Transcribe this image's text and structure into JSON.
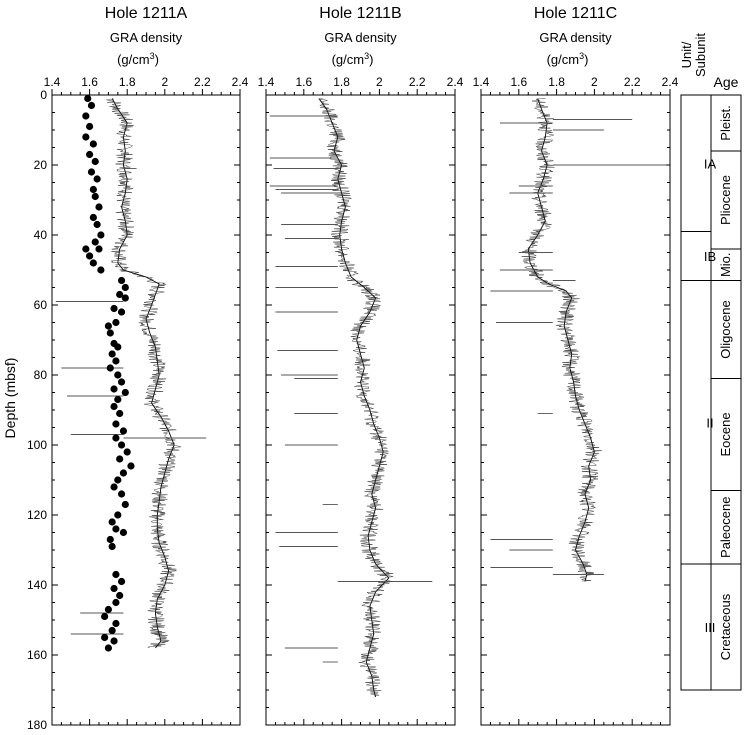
{
  "figure": {
    "ylabel": "Depth (mbsf)",
    "yticks": [
      0,
      20,
      40,
      60,
      80,
      100,
      120,
      140,
      160,
      180
    ],
    "xticks": [
      "1.4",
      "1.6",
      "1.8",
      "2",
      "2.2",
      "2.4"
    ],
    "column_headers": {
      "unit": "Unit/ Subunit",
      "age": "Age"
    }
  },
  "chart_data": [
    {
      "type": "line",
      "title": "Hole 1211A",
      "xlabel_main": "GRA density",
      "xlabel_unit": "(g/cm",
      "xlabel_sup": "3",
      "xlabel_close": ")",
      "xlim": [
        1.4,
        2.4
      ],
      "ylim": [
        0,
        180
      ],
      "y_inverted": true,
      "series": [
        {
          "style": "gra-line",
          "points": [
            [
              1.72,
              1
            ],
            [
              1.75,
              4
            ],
            [
              1.8,
              8
            ],
            [
              1.78,
              12
            ],
            [
              1.79,
              16
            ],
            [
              1.78,
              20
            ],
            [
              1.8,
              24
            ],
            [
              1.79,
              28
            ],
            [
              1.77,
              32
            ],
            [
              1.79,
              36
            ],
            [
              1.8,
              40
            ],
            [
              1.76,
              44
            ],
            [
              1.75,
              48
            ],
            [
              1.78,
              50
            ],
            [
              1.9,
              52
            ],
            [
              1.97,
              54
            ],
            [
              1.95,
              57
            ],
            [
              1.93,
              60
            ],
            [
              1.9,
              64
            ],
            [
              1.92,
              68
            ],
            [
              1.95,
              72
            ],
            [
              1.96,
              76
            ],
            [
              1.97,
              80
            ],
            [
              1.95,
              84
            ],
            [
              1.93,
              88
            ],
            [
              1.98,
              92
            ],
            [
              2.02,
              96
            ],
            [
              2.05,
              100
            ],
            [
              2.02,
              104
            ],
            [
              2.0,
              108
            ],
            [
              1.98,
              112
            ],
            [
              1.97,
              116
            ],
            [
              1.96,
              120
            ],
            [
              1.96,
              124
            ],
            [
              1.97,
              128
            ],
            [
              2.0,
              132
            ],
            [
              2.02,
              136
            ],
            [
              2.0,
              140
            ],
            [
              1.96,
              144
            ],
            [
              1.95,
              148
            ],
            [
              1.96,
              152
            ],
            [
              1.98,
              156
            ],
            [
              1.95,
              158
            ]
          ]
        },
        {
          "style": "gra-spikes",
          "points": [
            [
              1.42,
              59
            ],
            [
              1.45,
              78
            ],
            [
              1.48,
              86
            ],
            [
              1.5,
              97
            ],
            [
              1.55,
              148
            ],
            [
              1.5,
              154
            ],
            [
              1.85,
              21
            ],
            [
              2.22,
              98
            ]
          ]
        },
        {
          "style": "mad-dots",
          "points": [
            [
              1.59,
              1
            ],
            [
              1.61,
              3
            ],
            [
              1.58,
              6
            ],
            [
              1.6,
              9
            ],
            [
              1.58,
              12
            ],
            [
              1.62,
              14
            ],
            [
              1.6,
              17
            ],
            [
              1.63,
              19
            ],
            [
              1.61,
              22
            ],
            [
              1.64,
              24
            ],
            [
              1.62,
              27
            ],
            [
              1.63,
              29
            ],
            [
              1.65,
              32
            ],
            [
              1.62,
              35
            ],
            [
              1.64,
              37
            ],
            [
              1.66,
              40
            ],
            [
              1.63,
              42
            ],
            [
              1.58,
              44
            ],
            [
              1.65,
              44
            ],
            [
              1.6,
              46
            ],
            [
              1.62,
              48
            ],
            [
              1.66,
              50
            ],
            [
              1.77,
              53
            ],
            [
              1.79,
              55
            ],
            [
              1.76,
              57
            ],
            [
              1.79,
              58
            ],
            [
              1.73,
              61
            ],
            [
              1.77,
              62
            ],
            [
              1.74,
              65
            ],
            [
              1.7,
              66
            ],
            [
              1.71,
              68
            ],
            [
              1.73,
              71
            ],
            [
              1.75,
              72
            ],
            [
              1.72,
              74
            ],
            [
              1.74,
              76
            ],
            [
              1.71,
              78
            ],
            [
              1.75,
              80
            ],
            [
              1.77,
              82
            ],
            [
              1.73,
              84
            ],
            [
              1.79,
              85
            ],
            [
              1.75,
              87
            ],
            [
              1.73,
              89
            ],
            [
              1.76,
              91
            ],
            [
              1.74,
              94
            ],
            [
              1.78,
              96
            ],
            [
              1.74,
              98
            ],
            [
              1.77,
              100
            ],
            [
              1.8,
              102
            ],
            [
              1.76,
              104
            ],
            [
              1.82,
              106
            ],
            [
              1.78,
              108
            ],
            [
              1.75,
              110
            ],
            [
              1.73,
              112
            ],
            [
              1.77,
              114
            ],
            [
              1.79,
              117
            ],
            [
              1.75,
              120
            ],
            [
              1.72,
              122
            ],
            [
              1.74,
              124
            ],
            [
              1.78,
              125
            ],
            [
              1.71,
              127
            ],
            [
              1.72,
              129
            ],
            [
              1.74,
              137
            ],
            [
              1.77,
              139
            ],
            [
              1.73,
              141
            ],
            [
              1.76,
              143
            ],
            [
              1.74,
              145
            ],
            [
              1.7,
              147
            ],
            [
              1.68,
              149
            ],
            [
              1.74,
              151
            ],
            [
              1.72,
              153
            ],
            [
              1.68,
              155
            ],
            [
              1.73,
              156
            ],
            [
              1.7,
              158
            ]
          ]
        }
      ]
    },
    {
      "type": "line",
      "title": "Hole 1211B",
      "xlabel_main": "GRA density",
      "xlabel_unit": "(g/cm",
      "xlabel_sup": "3",
      "xlabel_close": ")",
      "xlim": [
        1.4,
        2.4
      ],
      "ylim": [
        0,
        180
      ],
      "y_inverted": true,
      "series": [
        {
          "style": "gra-line",
          "points": [
            [
              1.68,
              1
            ],
            [
              1.72,
              4
            ],
            [
              1.75,
              8
            ],
            [
              1.78,
              12
            ],
            [
              1.76,
              16
            ],
            [
              1.8,
              20
            ],
            [
              1.78,
              24
            ],
            [
              1.8,
              28
            ],
            [
              1.82,
              32
            ],
            [
              1.8,
              36
            ],
            [
              1.79,
              40
            ],
            [
              1.8,
              44
            ],
            [
              1.82,
              48
            ],
            [
              1.85,
              52
            ],
            [
              1.92,
              55
            ],
            [
              1.98,
              58
            ],
            [
              1.95,
              62
            ],
            [
              1.9,
              66
            ],
            [
              1.88,
              70
            ],
            [
              1.9,
              74
            ],
            [
              1.92,
              78
            ],
            [
              1.9,
              82
            ],
            [
              1.92,
              86
            ],
            [
              1.95,
              90
            ],
            [
              1.97,
              94
            ],
            [
              2.0,
              98
            ],
            [
              2.02,
              102
            ],
            [
              2.0,
              106
            ],
            [
              1.98,
              110
            ],
            [
              1.96,
              114
            ],
            [
              1.98,
              118
            ],
            [
              1.96,
              122
            ],
            [
              1.94,
              126
            ],
            [
              1.95,
              130
            ],
            [
              1.98,
              134
            ],
            [
              2.05,
              138
            ],
            [
              1.98,
              142
            ],
            [
              1.95,
              146
            ],
            [
              1.96,
              150
            ],
            [
              1.97,
              154
            ],
            [
              1.95,
              158
            ],
            [
              1.93,
              162
            ],
            [
              1.96,
              166
            ],
            [
              1.97,
              170
            ],
            [
              1.98,
              172
            ]
          ]
        },
        {
          "style": "gra-spikes",
          "points": [
            [
              1.42,
              6
            ],
            [
              1.42,
              18
            ],
            [
              1.44,
              21
            ],
            [
              1.42,
              26
            ],
            [
              1.45,
              27
            ],
            [
              1.48,
              28
            ],
            [
              1.48,
              37
            ],
            [
              1.5,
              41
            ],
            [
              1.45,
              49
            ],
            [
              1.45,
              55
            ],
            [
              1.45,
              62
            ],
            [
              1.46,
              73
            ],
            [
              1.48,
              80
            ],
            [
              1.55,
              81
            ],
            [
              1.55,
              91
            ],
            [
              1.5,
              100
            ],
            [
              1.7,
              117
            ],
            [
              1.45,
              125
            ],
            [
              1.47,
              129
            ],
            [
              2.28,
              139
            ],
            [
              1.5,
              158
            ],
            [
              1.7,
              162
            ]
          ]
        }
      ]
    },
    {
      "type": "line",
      "title": "Hole 1211C",
      "xlabel_main": "GRA density",
      "xlabel_unit": "(g/cm",
      "xlabel_sup": "3",
      "xlabel_close": ")",
      "xlim": [
        1.4,
        2.4
      ],
      "ylim": [
        0,
        180
      ],
      "y_inverted": true,
      "series": [
        {
          "style": "gra-line",
          "points": [
            [
              1.7,
              1
            ],
            [
              1.72,
              4
            ],
            [
              1.75,
              8
            ],
            [
              1.74,
              12
            ],
            [
              1.72,
              16
            ],
            [
              1.75,
              20
            ],
            [
              1.73,
              24
            ],
            [
              1.7,
              28
            ],
            [
              1.72,
              32
            ],
            [
              1.74,
              36
            ],
            [
              1.7,
              40
            ],
            [
              1.65,
              44
            ],
            [
              1.66,
              48
            ],
            [
              1.7,
              52
            ],
            [
              1.76,
              54
            ],
            [
              1.85,
              56
            ],
            [
              1.88,
              58
            ],
            [
              1.85,
              62
            ],
            [
              1.84,
              66
            ],
            [
              1.86,
              70
            ],
            [
              1.88,
              74
            ],
            [
              1.87,
              78
            ],
            [
              1.89,
              82
            ],
            [
              1.9,
              86
            ],
            [
              1.92,
              90
            ],
            [
              1.95,
              94
            ],
            [
              1.98,
              98
            ],
            [
              2.0,
              102
            ],
            [
              1.97,
              106
            ],
            [
              1.98,
              110
            ],
            [
              1.95,
              114
            ],
            [
              1.97,
              118
            ],
            [
              1.95,
              122
            ],
            [
              1.92,
              126
            ],
            [
              1.9,
              130
            ],
            [
              1.94,
              134
            ],
            [
              1.96,
              137
            ],
            [
              1.95,
              139
            ]
          ]
        },
        {
          "style": "gra-spikes",
          "points": [
            [
              2.05,
              10
            ],
            [
              2.2,
              7
            ],
            [
              1.5,
              8
            ],
            [
              2.38,
              20
            ],
            [
              1.6,
              26
            ],
            [
              1.55,
              28
            ],
            [
              1.6,
              45
            ],
            [
              1.5,
              50
            ],
            [
              1.9,
              53
            ],
            [
              1.45,
              56
            ],
            [
              1.48,
              65
            ],
            [
              1.7,
              91
            ],
            [
              1.45,
              127
            ],
            [
              1.55,
              130
            ],
            [
              1.45,
              135
            ],
            [
              2.05,
              137
            ]
          ]
        }
      ]
    }
  ],
  "units": [
    {
      "label": "IA",
      "from": 0,
      "to": 39
    },
    {
      "label": "IB",
      "from": 39,
      "to": 53
    },
    {
      "label": "II",
      "from": 53,
      "to": 134
    },
    {
      "label": "III",
      "from": 134,
      "to": 170
    }
  ],
  "ages": [
    {
      "label": "Pleist.",
      "from": 0,
      "to": 16
    },
    {
      "label": "Pliocene",
      "from": 16,
      "to": 44
    },
    {
      "label": "Mio.",
      "from": 44,
      "to": 53
    },
    {
      "label": "Oligocene",
      "from": 53,
      "to": 81
    },
    {
      "label": "Eocene",
      "from": 81,
      "to": 113
    },
    {
      "label": "Paleocene",
      "from": 113,
      "to": 134
    },
    {
      "label": "Cretaceous",
      "from": 134,
      "to": 170
    }
  ]
}
